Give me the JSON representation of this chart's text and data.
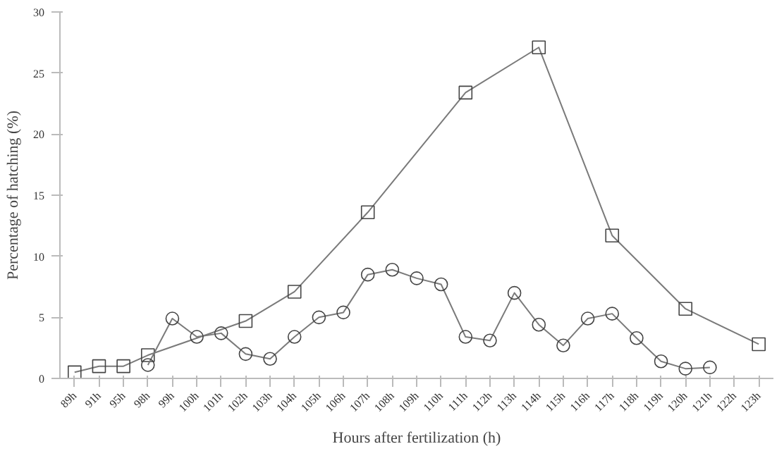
{
  "chart_data": {
    "type": "line",
    "xlabel": "Hours after fertilization (h)",
    "ylabel": "Percentage of hatching (%)",
    "categories": [
      "89h",
      "91h",
      "95h",
      "98h",
      "99h",
      "100h",
      "101h",
      "102h",
      "103h",
      "104h",
      "105h",
      "106h",
      "107h",
      "108h",
      "109h",
      "110h",
      "111h",
      "112h",
      "113h",
      "114h",
      "115h",
      "116h",
      "117h",
      "118h",
      "119h",
      "120h",
      "121h",
      "122h",
      "123h"
    ],
    "series": [
      {
        "color": "#7a7a7a",
        "marker": "square",
        "values": [
          0.5,
          1.0,
          1.0,
          1.9,
          null,
          null,
          null,
          4.7,
          null,
          7.1,
          null,
          null,
          13.6,
          null,
          null,
          null,
          23.4,
          null,
          null,
          27.1,
          null,
          null,
          11.7,
          null,
          null,
          5.7,
          null,
          null,
          2.8
        ]
      },
      {
        "color": "#7a7a7a",
        "marker": "circle",
        "values": [
          null,
          null,
          null,
          1.1,
          4.9,
          3.4,
          3.7,
          2.0,
          1.6,
          3.4,
          5.0,
          5.4,
          8.5,
          8.9,
          8.2,
          7.7,
          3.4,
          3.1,
          7.0,
          4.4,
          2.7,
          4.9,
          5.3,
          3.3,
          1.4,
          0.8,
          0.9,
          null,
          null
        ]
      }
    ],
    "ylim": [
      0,
      30
    ],
    "yticks": [
      0,
      5,
      10,
      15,
      20,
      25,
      30
    ],
    "grid": false,
    "line_style": "solid"
  }
}
